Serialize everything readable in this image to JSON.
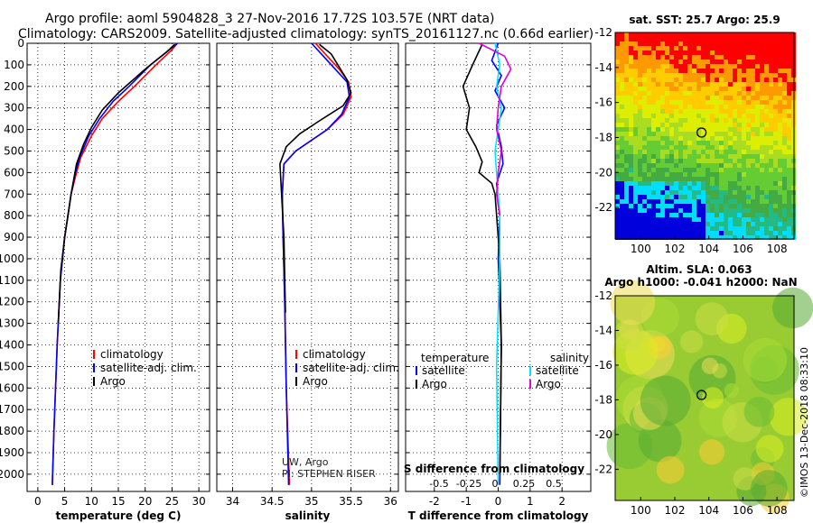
{
  "title": {
    "line1": "Argo profile: aoml 5904828_3 27-Nov-2016 17.72S 103.57E (NRT data)",
    "line2": "Climatology: CARS2009. Satellite-adjusted climatology: synTS_20161127.nc (0.66d earlier)"
  },
  "colors": {
    "climatology": "#ff0000",
    "satellite": "#0000ff",
    "argo": "#000000",
    "salinity_clim": "#00e5ff",
    "salinity_argo": "#e000e0"
  },
  "chart_data": [
    {
      "type": "line",
      "xlabel": "temperature (deg C)",
      "xlim": [
        -2,
        32
      ],
      "xticks": [
        0,
        5,
        10,
        15,
        20,
        25,
        30
      ],
      "ylim": [
        2080,
        0
      ],
      "yticks": [
        0,
        100,
        200,
        300,
        400,
        500,
        600,
        700,
        800,
        900,
        1000,
        1100,
        1200,
        1300,
        1400,
        1500,
        1600,
        1700,
        1800,
        1900,
        2000
      ],
      "legend": [
        "climatology",
        "satellite-adj. clim.",
        "Argo"
      ],
      "series": [
        {
          "name": "climatology",
          "color": "#ff0000",
          "x": [
            26,
            25,
            22,
            18,
            15,
            12,
            10,
            8,
            7.2,
            6.2,
            5.6,
            5,
            4.2,
            3.6,
            3,
            2.7
          ],
          "y": [
            0,
            30,
            100,
            200,
            270,
            350,
            430,
            530,
            600,
            700,
            800,
            900,
            1100,
            1400,
            1800,
            2050
          ]
        },
        {
          "name": "satellite-adj. clim.",
          "color": "#0000ff",
          "x": [
            26,
            24.5,
            21,
            17,
            14,
            11.5,
            9.5,
            7.8,
            7,
            6.2,
            5.6,
            5,
            4.2,
            3.6,
            3,
            2.7
          ],
          "y": [
            0,
            30,
            100,
            200,
            270,
            350,
            430,
            530,
            600,
            700,
            800,
            900,
            1100,
            1400,
            1800,
            2050
          ]
        },
        {
          "name": "Argo",
          "color": "#000000",
          "x": [
            25.5,
            24,
            20,
            15,
            12,
            10,
            8.5,
            7.2,
            6.2,
            5.6,
            5,
            4.3,
            3.8
          ],
          "y": [
            5,
            40,
            120,
            230,
            310,
            390,
            470,
            560,
            700,
            800,
            900,
            1050,
            1300
          ]
        }
      ],
      "annotations": []
    },
    {
      "type": "line",
      "xlabel": "salinity",
      "xlim": [
        33.8,
        36.1
      ],
      "xticks": [
        34,
        34.5,
        35,
        35.5,
        36
      ],
      "ylim": [
        2080,
        0
      ],
      "legend": [
        "climatology",
        "satellite-adj. clim.",
        "Argo"
      ],
      "series": [
        {
          "name": "climatology",
          "color": "#ff0000",
          "x": [
            35.05,
            35.2,
            35.35,
            35.47,
            35.5,
            35.4,
            35.2,
            35,
            34.8,
            34.65,
            34.63,
            34.64,
            34.66,
            34.68,
            34.72
          ],
          "y": [
            0,
            60,
            120,
            180,
            250,
            330,
            400,
            450,
            500,
            560,
            700,
            900,
            1200,
            1600,
            2050
          ]
        },
        {
          "name": "satellite-adj. clim.",
          "color": "#0000ff",
          "x": [
            35.0,
            35.15,
            35.3,
            35.45,
            35.48,
            35.38,
            35.2,
            35,
            34.8,
            34.65,
            34.63,
            34.64,
            34.66,
            34.68,
            34.71
          ],
          "y": [
            0,
            60,
            120,
            180,
            250,
            330,
            400,
            450,
            500,
            560,
            700,
            900,
            1200,
            1600,
            2050
          ]
        },
        {
          "name": "Argo",
          "color": "#000000",
          "x": [
            35.1,
            35.25,
            35.35,
            35.45,
            35.5,
            35.4,
            35.1,
            34.85,
            34.68,
            34.6,
            34.62,
            34.65,
            34.67
          ],
          "y": [
            5,
            50,
            110,
            170,
            230,
            290,
            360,
            420,
            480,
            560,
            700,
            900,
            1250
          ]
        }
      ],
      "annotations": [
        "UW, Argo",
        "PI: STEPHEN RISER"
      ]
    },
    {
      "type": "line",
      "xlabel": "T difference from climatology",
      "xlabel2": "S difference from climatology",
      "xlim": [
        -2.9,
        2.9
      ],
      "xticks": [
        -2,
        -1,
        0,
        1,
        2
      ],
      "xticks_top_labels": [
        "-0.5",
        "-0.25",
        "0",
        "0.25",
        "0.5"
      ],
      "ylim": [
        2080,
        0
      ],
      "legend_left_title": "temperature",
      "legend_right_title": "salinity",
      "legend": [
        "satellite",
        "Argo",
        "satellite",
        "Argo"
      ],
      "series": [
        {
          "name": "T satellite",
          "color": "#0000ff",
          "x": [
            0,
            -0.2,
            0.1,
            -0.1,
            0.2,
            -0.05,
            0.1,
            0.15,
            -0.05,
            0.05,
            0,
            0.1,
            0.05
          ],
          "y": [
            0,
            80,
            150,
            220,
            300,
            380,
            480,
            560,
            650,
            800,
            1000,
            1400,
            2050
          ]
        },
        {
          "name": "T Argo",
          "color": "#000000",
          "x": [
            -0.5,
            -0.8,
            -1.1,
            -0.9,
            -1.0,
            -0.7,
            -0.5,
            -0.6,
            -0.2,
            -0.1,
            0.05,
            0.1,
            0.05
          ],
          "y": [
            5,
            100,
            200,
            300,
            400,
            480,
            550,
            600,
            650,
            700,
            1000,
            1400,
            2000
          ]
        },
        {
          "name": "S satellite",
          "color": "#00e5ff",
          "x": [
            -0.1,
            0.05,
            -0.05,
            0.1,
            0,
            -0.1,
            -0.05,
            0,
            0.05,
            0.05,
            -0.05,
            0
          ],
          "y": [
            0,
            100,
            200,
            300,
            400,
            500,
            600,
            700,
            800,
            1000,
            1500,
            2050
          ]
        },
        {
          "name": "S Argo",
          "color": "#e000e0",
          "x": [
            -0.6,
            0.2,
            0.4,
            0.1,
            0.0,
            -0.05,
            0.1,
            0.0,
            -0.05,
            0.05
          ],
          "y": [
            0,
            60,
            120,
            200,
            300,
            400,
            500,
            600,
            700,
            800
          ]
        }
      ],
      "annotations": []
    },
    {
      "type": "heatmap",
      "title": "sat. SST: 25.7 Argo: 25.9",
      "xlim": [
        98.5,
        109
      ],
      "ylim": [
        -23.8,
        -12
      ],
      "xticks": [
        100,
        102,
        104,
        106,
        108
      ],
      "yticks": [
        -12,
        -14,
        -16,
        -18,
        -20,
        -22
      ],
      "marker": {
        "lon": 103.57,
        "lat": -17.72
      }
    },
    {
      "type": "heatmap",
      "title": "Altim. SLA: 0.063",
      "subtitle": "Argo h1000: -0.041 h2000: NaN",
      "xlim": [
        98.5,
        109
      ],
      "ylim": [
        -23.8,
        -12
      ],
      "xticks": [
        100,
        102,
        104,
        106,
        108
      ],
      "yticks": [
        -12,
        -14,
        -16,
        -18,
        -20,
        -22
      ],
      "marker": {
        "lon": 103.57,
        "lat": -17.72
      }
    }
  ],
  "footer": "©IMOS 13-Dec-2018 08:33:10"
}
